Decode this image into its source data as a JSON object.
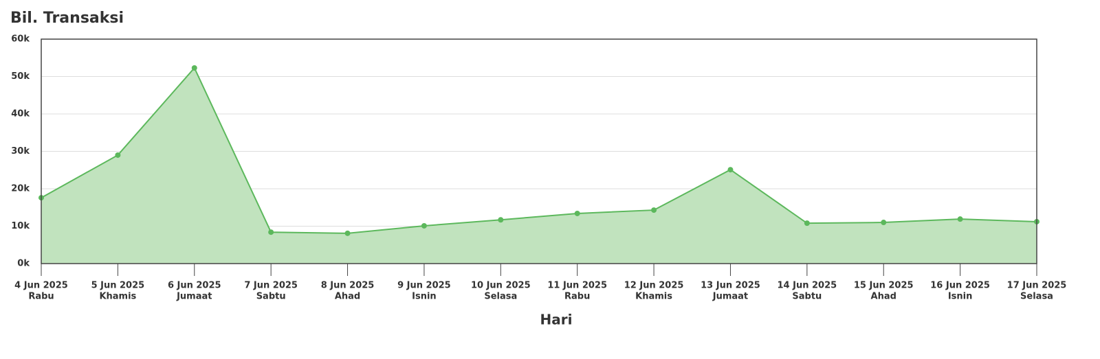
{
  "chart_data": {
    "type": "area",
    "title": "Bil. Transaksi",
    "x_label": "Hari",
    "categories": [
      "4 Jun 2025",
      "5 Jun 2025",
      "6 Jun 2025",
      "7 Jun 2025",
      "8 Jun 2025",
      "9 Jun 2025",
      "10 Jun 2025",
      "11 Jun 2025",
      "12 Jun 2025",
      "13 Jun 2025",
      "14 Jun 2025",
      "15 Jun 2025",
      "16 Jun 2025",
      "17 Jun 2025"
    ],
    "weekdays": [
      "Rabu",
      "Khamis",
      "Jumaat",
      "Sabtu",
      "Ahad",
      "Isnin",
      "Selasa",
      "Rabu",
      "Khamis",
      "Jumaat",
      "Sabtu",
      "Ahad",
      "Isnin",
      "Selasa"
    ],
    "values": [
      17600,
      29000,
      52300,
      8400,
      8100,
      10100,
      11700,
      13400,
      14300,
      25100,
      10800,
      11000,
      11900,
      11200
    ],
    "color": "#5cb85c",
    "fill_color": "#c1e3be",
    "ylim": [
      0,
      60000
    ],
    "yticks": [
      {
        "value": 0,
        "label": "0k"
      },
      {
        "value": 10000,
        "label": "10k"
      },
      {
        "value": 20000,
        "label": "20k"
      },
      {
        "value": 30000,
        "label": "30k"
      },
      {
        "value": 40000,
        "label": "40k"
      },
      {
        "value": 50000,
        "label": "50k"
      },
      {
        "value": 60000,
        "label": "60k"
      }
    ],
    "grid": true
  }
}
